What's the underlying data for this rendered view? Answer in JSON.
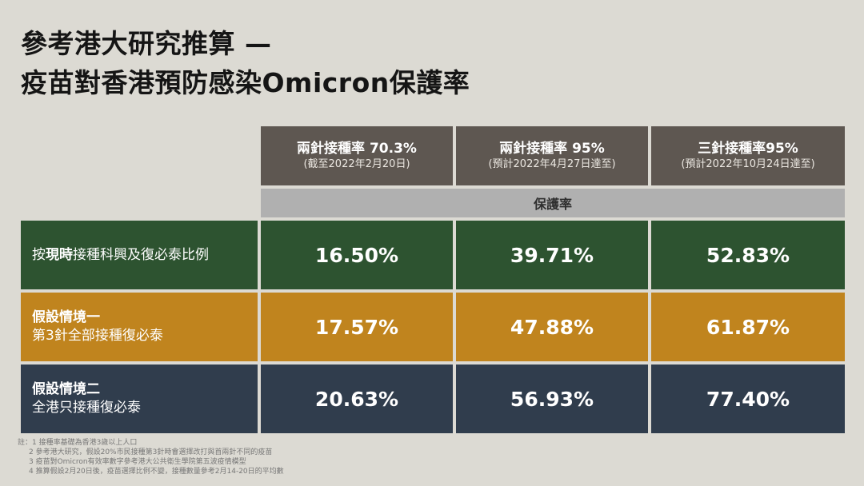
{
  "title": {
    "line1": "參考港大研究推算 —",
    "line2": "疫苗對香港預防感染Omicron保護率"
  },
  "chart_data": {
    "type": "table",
    "columns": [
      {
        "label": "兩針接種率 70.3%",
        "sub": "(截至2022年2月20日)"
      },
      {
        "label": "兩針接種率 95%",
        "sub": "(預計2022年4月27日達至)"
      },
      {
        "label": "三針接種率95%",
        "sub": "(預計2022年10月24日達至)"
      }
    ],
    "subheader": "保護率",
    "rows": [
      {
        "pre": "按",
        "bold": "現時",
        "post": "接種科興及復必泰比例",
        "values": [
          "16.50%",
          "39.71%",
          "52.83%"
        ],
        "color": "#2d5330"
      },
      {
        "label1": "假設情境一",
        "label2": "第3針全部接種復必泰",
        "values": [
          "17.57%",
          "47.88%",
          "61.87%"
        ],
        "color": "#c0841e"
      },
      {
        "label1": "假設情境二",
        "label2": "全港只接種復必泰",
        "values": [
          "20.63%",
          "56.93%",
          "77.40%"
        ],
        "color": "#303d4d"
      }
    ]
  },
  "notes": [
    "註：1 接種率基礎為香港3歲以上人口",
    "2 參考港大研究，假設20%市民接種第3針時會選擇改打與首兩針不同的疫苗",
    "3 疫苗對Omicron有效率數字參考港大公共衛生學院第五波疫情模型",
    "4 推算假設2月20日後，疫苗選擇比例不變，接種數量參考2月14-20日的平均數"
  ]
}
